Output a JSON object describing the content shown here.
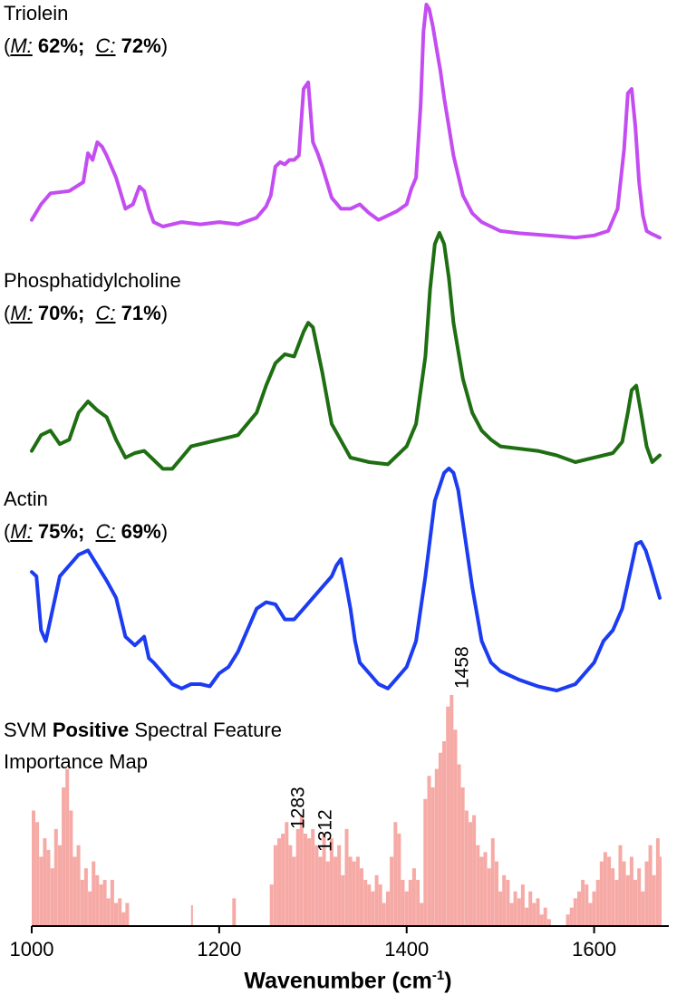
{
  "colors": {
    "triolein": "#c44df2",
    "pc": "#1e6e12",
    "actin": "#1c3cf2",
    "importance": "#f6aaa6"
  },
  "spectra": [
    {
      "name": "Triolein",
      "M": "62%",
      "C": "72%",
      "color_key": "triolein"
    },
    {
      "name": "Phosphatidylcholine",
      "M": "70%",
      "C": "71%",
      "color_key": "pc"
    },
    {
      "name": "Actin",
      "M": "75%",
      "C": "69%",
      "color_key": "actin"
    }
  ],
  "metric_labels": {
    "M": "M:",
    "C": "C:"
  },
  "importance_title": {
    "prefix": "SVM",
    "bold": "Positive",
    "suffix": "Spectral Feature",
    "line2": "Importance Map"
  },
  "x_axis": {
    "title": "Wavenumber",
    "unit_open": "(cm",
    "unit_sup": "-1",
    "unit_close": ")"
  },
  "chart_data": {
    "type": "line",
    "xlim": [
      1000,
      1670
    ],
    "x_ticks": [
      1000,
      1200,
      1400,
      1600
    ],
    "series": [
      {
        "name": "Triolein",
        "style": "line",
        "x": [
          1000,
          1010,
          1020,
          1040,
          1055,
          1060,
          1065,
          1070,
          1075,
          1080,
          1090,
          1100,
          1108,
          1115,
          1120,
          1125,
          1130,
          1140,
          1160,
          1180,
          1200,
          1220,
          1240,
          1250,
          1255,
          1260,
          1265,
          1270,
          1275,
          1280,
          1285,
          1290,
          1295,
          1300,
          1305,
          1310,
          1320,
          1330,
          1340,
          1350,
          1360,
          1370,
          1380,
          1390,
          1400,
          1405,
          1410,
          1415,
          1418,
          1421,
          1424,
          1428,
          1432,
          1436,
          1440,
          1445,
          1450,
          1460,
          1470,
          1480,
          1490,
          1500,
          1520,
          1550,
          1580,
          1600,
          1615,
          1625,
          1632,
          1636,
          1640,
          1644,
          1648,
          1652,
          1656,
          1660,
          1665,
          1670
        ],
        "y": [
          0.03,
          0.1,
          0.15,
          0.16,
          0.2,
          0.33,
          0.3,
          0.38,
          0.36,
          0.32,
          0.22,
          0.08,
          0.1,
          0.18,
          0.16,
          0.08,
          0.02,
          0.0,
          0.02,
          0.01,
          0.02,
          0.01,
          0.04,
          0.09,
          0.14,
          0.27,
          0.29,
          0.28,
          0.3,
          0.3,
          0.32,
          0.62,
          0.65,
          0.38,
          0.33,
          0.27,
          0.13,
          0.08,
          0.08,
          0.1,
          0.06,
          0.03,
          0.05,
          0.07,
          0.1,
          0.17,
          0.22,
          0.55,
          0.88,
          1.0,
          0.98,
          0.9,
          0.8,
          0.7,
          0.58,
          0.45,
          0.32,
          0.14,
          0.06,
          0.02,
          0.0,
          -0.02,
          -0.03,
          -0.04,
          -0.05,
          -0.04,
          -0.02,
          0.08,
          0.35,
          0.6,
          0.62,
          0.45,
          0.2,
          0.05,
          -0.02,
          -0.03,
          -0.04,
          -0.05
        ]
      },
      {
        "name": "Phosphatidylcholine",
        "style": "line",
        "x": [
          1000,
          1010,
          1020,
          1030,
          1040,
          1050,
          1060,
          1070,
          1080,
          1090,
          1100,
          1110,
          1120,
          1130,
          1140,
          1150,
          1160,
          1170,
          1180,
          1200,
          1220,
          1240,
          1250,
          1260,
          1270,
          1280,
          1290,
          1295,
          1300,
          1310,
          1320,
          1340,
          1360,
          1380,
          1400,
          1410,
          1420,
          1425,
          1430,
          1435,
          1440,
          1445,
          1450,
          1460,
          1470,
          1480,
          1490,
          1500,
          1520,
          1540,
          1560,
          1580,
          1600,
          1620,
          1630,
          1636,
          1640,
          1645,
          1650,
          1656,
          1662,
          1670
        ],
        "y": [
          0.03,
          0.1,
          0.12,
          0.06,
          0.08,
          0.2,
          0.25,
          0.21,
          0.18,
          0.08,
          0.0,
          0.02,
          0.03,
          -0.01,
          -0.05,
          -0.05,
          0.0,
          0.05,
          0.06,
          0.08,
          0.1,
          0.2,
          0.32,
          0.42,
          0.46,
          0.45,
          0.56,
          0.6,
          0.58,
          0.38,
          0.15,
          0.0,
          -0.02,
          -0.03,
          0.05,
          0.15,
          0.45,
          0.75,
          0.95,
          1.0,
          0.95,
          0.8,
          0.6,
          0.35,
          0.2,
          0.12,
          0.08,
          0.05,
          0.04,
          0.03,
          0.01,
          -0.02,
          0.0,
          0.02,
          0.07,
          0.2,
          0.3,
          0.32,
          0.2,
          0.05,
          -0.02,
          0.01
        ]
      },
      {
        "name": "Actin",
        "style": "line",
        "x": [
          1000,
          1005,
          1010,
          1015,
          1020,
          1030,
          1040,
          1050,
          1060,
          1070,
          1080,
          1090,
          1100,
          1110,
          1120,
          1125,
          1130,
          1140,
          1150,
          1160,
          1170,
          1180,
          1190,
          1200,
          1210,
          1220,
          1230,
          1240,
          1250,
          1260,
          1270,
          1280,
          1290,
          1300,
          1310,
          1320,
          1325,
          1330,
          1335,
          1340,
          1345,
          1350,
          1360,
          1370,
          1380,
          1390,
          1400,
          1410,
          1420,
          1430,
          1440,
          1445,
          1450,
          1455,
          1460,
          1470,
          1480,
          1490,
          1500,
          1520,
          1540,
          1560,
          1580,
          1590,
          1600,
          1610,
          1620,
          1630,
          1640,
          1645,
          1650,
          1655,
          1660,
          1670
        ],
        "y": [
          0.52,
          0.5,
          0.25,
          0.2,
          0.3,
          0.5,
          0.55,
          0.6,
          0.62,
          0.55,
          0.48,
          0.4,
          0.22,
          0.18,
          0.22,
          0.12,
          0.1,
          0.05,
          0.0,
          -0.02,
          0.0,
          0.0,
          -0.01,
          0.05,
          0.08,
          0.15,
          0.25,
          0.35,
          0.38,
          0.37,
          0.3,
          0.3,
          0.35,
          0.4,
          0.45,
          0.5,
          0.55,
          0.58,
          0.47,
          0.35,
          0.2,
          0.1,
          0.05,
          0.0,
          -0.02,
          0.03,
          0.08,
          0.2,
          0.5,
          0.85,
          0.98,
          1.0,
          0.98,
          0.9,
          0.75,
          0.45,
          0.2,
          0.1,
          0.06,
          0.02,
          -0.01,
          -0.03,
          0.0,
          0.05,
          0.1,
          0.2,
          0.25,
          0.35,
          0.55,
          0.65,
          0.66,
          0.62,
          0.55,
          0.4
        ]
      },
      {
        "name": "SVM Positive Spectral Feature Importance Map",
        "style": "area",
        "x": [
          1000,
          1004,
          1008,
          1012,
          1016,
          1020,
          1024,
          1028,
          1032,
          1036,
          1040,
          1044,
          1048,
          1052,
          1056,
          1060,
          1064,
          1068,
          1072,
          1076,
          1080,
          1084,
          1088,
          1092,
          1096,
          1100,
          1168,
          1170,
          1172,
          1210,
          1214,
          1218,
          1250,
          1254,
          1258,
          1262,
          1266,
          1270,
          1274,
          1278,
          1282,
          1286,
          1290,
          1294,
          1298,
          1302,
          1306,
          1310,
          1314,
          1318,
          1322,
          1326,
          1330,
          1334,
          1338,
          1342,
          1346,
          1350,
          1354,
          1358,
          1362,
          1366,
          1370,
          1374,
          1378,
          1382,
          1386,
          1390,
          1394,
          1398,
          1402,
          1406,
          1410,
          1414,
          1418,
          1422,
          1426,
          1430,
          1434,
          1438,
          1442,
          1446,
          1450,
          1454,
          1458,
          1462,
          1466,
          1470,
          1474,
          1478,
          1482,
          1486,
          1490,
          1494,
          1498,
          1502,
          1506,
          1510,
          1514,
          1518,
          1522,
          1526,
          1530,
          1534,
          1538,
          1542,
          1546,
          1550,
          1554,
          1558,
          1562,
          1566,
          1570,
          1574,
          1578,
          1582,
          1586,
          1590,
          1594,
          1598,
          1602,
          1606,
          1610,
          1614,
          1618,
          1622,
          1626,
          1630,
          1634,
          1638,
          1642,
          1646,
          1650,
          1654,
          1658,
          1662,
          1666,
          1670
        ],
        "y": [
          0.5,
          0.45,
          0.3,
          0.38,
          0.33,
          0.25,
          0.42,
          0.35,
          0.6,
          0.68,
          0.5,
          0.3,
          0.35,
          0.2,
          0.25,
          0.15,
          0.28,
          0.22,
          0.18,
          0.2,
          0.12,
          0.2,
          0.1,
          0.12,
          0.06,
          0.1,
          0.0,
          0.09,
          0.0,
          0.0,
          0.12,
          0.0,
          0.0,
          0.18,
          0.35,
          0.38,
          0.4,
          0.45,
          0.35,
          0.3,
          0.42,
          0.48,
          0.4,
          0.38,
          0.42,
          0.35,
          0.3,
          0.4,
          0.28,
          0.38,
          0.3,
          0.35,
          0.22,
          0.42,
          0.3,
          0.28,
          0.3,
          0.25,
          0.2,
          0.18,
          0.15,
          0.22,
          0.18,
          0.1,
          0.15,
          0.3,
          0.45,
          0.4,
          0.2,
          0.15,
          0.2,
          0.25,
          0.2,
          0.1,
          0.55,
          0.65,
          0.6,
          0.68,
          0.75,
          0.8,
          0.95,
          1.0,
          0.85,
          0.7,
          0.6,
          0.5,
          0.45,
          0.48,
          0.35,
          0.3,
          0.32,
          0.25,
          0.38,
          0.28,
          0.15,
          0.22,
          0.2,
          0.1,
          0.15,
          0.12,
          0.18,
          0.08,
          0.15,
          0.1,
          0.12,
          0.05,
          0.08,
          0.03,
          0.0,
          0.0,
          0.0,
          0.0,
          0.05,
          0.08,
          0.12,
          0.15,
          0.2,
          0.18,
          0.1,
          0.15,
          0.2,
          0.28,
          0.32,
          0.3,
          0.25,
          0.2,
          0.35,
          0.28,
          0.22,
          0.3,
          0.2,
          0.25,
          0.15,
          0.28,
          0.35,
          0.22,
          0.38,
          0.3
        ]
      }
    ],
    "annotations": [
      {
        "text": "1458",
        "x": 1458
      },
      {
        "text": "1283",
        "x": 1283
      },
      {
        "text": "1312",
        "x": 1312
      }
    ],
    "grid": false,
    "xlabel": "Wavenumber (cm-1)",
    "ylabel": ""
  }
}
